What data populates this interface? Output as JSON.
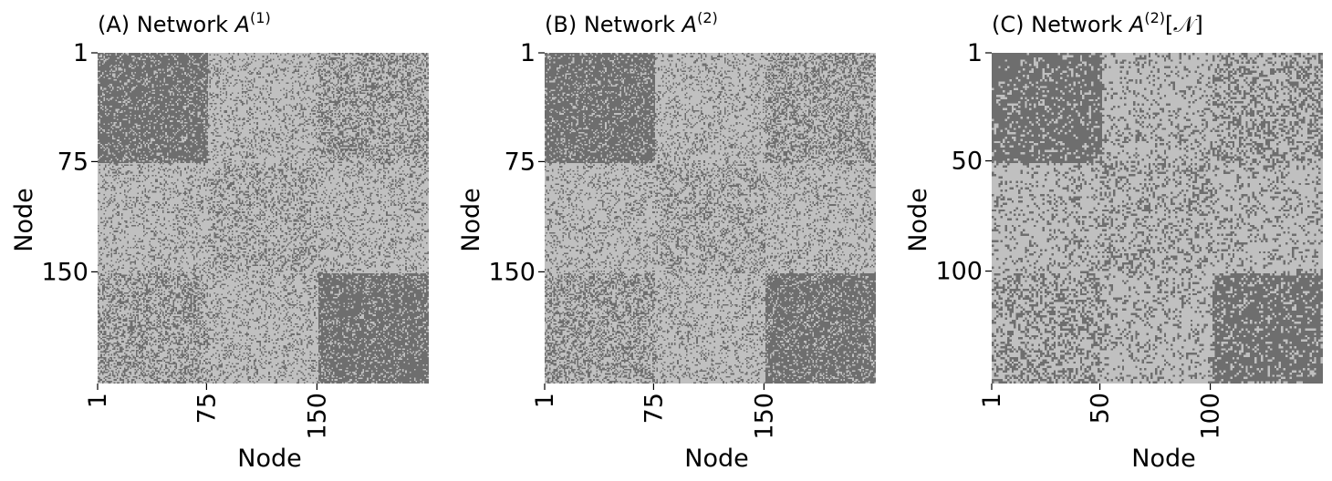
{
  "colors": {
    "background": "#ffffff",
    "edge": "#6e6e6e",
    "no_edge": "#c0c0c0"
  },
  "chart_data": [
    {
      "type": "heatmap",
      "title_text": "(A) Network ",
      "title_math": "A",
      "title_sup": "(1)",
      "title_suffix": "",
      "xlabel": "Node",
      "ylabel": "Node",
      "n": 225,
      "x_ticks": [
        {
          "value": 1,
          "label": "1"
        },
        {
          "value": 75,
          "label": "75"
        },
        {
          "value": 150,
          "label": "150"
        }
      ],
      "y_ticks": [
        {
          "value": 1,
          "label": "1"
        },
        {
          "value": 75,
          "label": "75"
        },
        {
          "value": 150,
          "label": "150"
        }
      ],
      "block_boundaries": [
        1,
        75,
        150,
        225
      ],
      "block_probabilities": [
        [
          0.8,
          0.2,
          0.4
        ],
        [
          0.2,
          0.3,
          0.2
        ],
        [
          0.4,
          0.2,
          0.8
        ]
      ],
      "legend": "none"
    },
    {
      "type": "heatmap",
      "title_text": "(B) Network ",
      "title_math": "A",
      "title_sup": "(2)",
      "title_suffix": "",
      "xlabel": "Node",
      "ylabel": "Node",
      "n": 225,
      "x_ticks": [
        {
          "value": 1,
          "label": "1"
        },
        {
          "value": 75,
          "label": "75"
        },
        {
          "value": 150,
          "label": "150"
        }
      ],
      "y_ticks": [
        {
          "value": 1,
          "label": "1"
        },
        {
          "value": 75,
          "label": "75"
        },
        {
          "value": 150,
          "label": "150"
        }
      ],
      "block_boundaries": [
        1,
        75,
        150,
        225
      ],
      "block_probabilities": [
        [
          0.8,
          0.2,
          0.4
        ],
        [
          0.2,
          0.3,
          0.2
        ],
        [
          0.4,
          0.2,
          0.8
        ]
      ],
      "legend": "none"
    },
    {
      "type": "heatmap",
      "title_text": "(C) Network ",
      "title_math": "A",
      "title_sup": "(2)",
      "title_suffix": "[𝒩]",
      "xlabel": "Node",
      "ylabel": "Node",
      "n": 150,
      "x_ticks": [
        {
          "value": 1,
          "label": "1"
        },
        {
          "value": 50,
          "label": "50"
        },
        {
          "value": 100,
          "label": "100"
        }
      ],
      "y_ticks": [
        {
          "value": 1,
          "label": "1"
        },
        {
          "value": 50,
          "label": "50"
        },
        {
          "value": 100,
          "label": "100"
        }
      ],
      "block_boundaries": [
        1,
        50,
        100,
        150
      ],
      "block_probabilities": [
        [
          0.8,
          0.2,
          0.4
        ],
        [
          0.2,
          0.3,
          0.2
        ],
        [
          0.4,
          0.2,
          0.8
        ]
      ],
      "legend": "none"
    }
  ]
}
